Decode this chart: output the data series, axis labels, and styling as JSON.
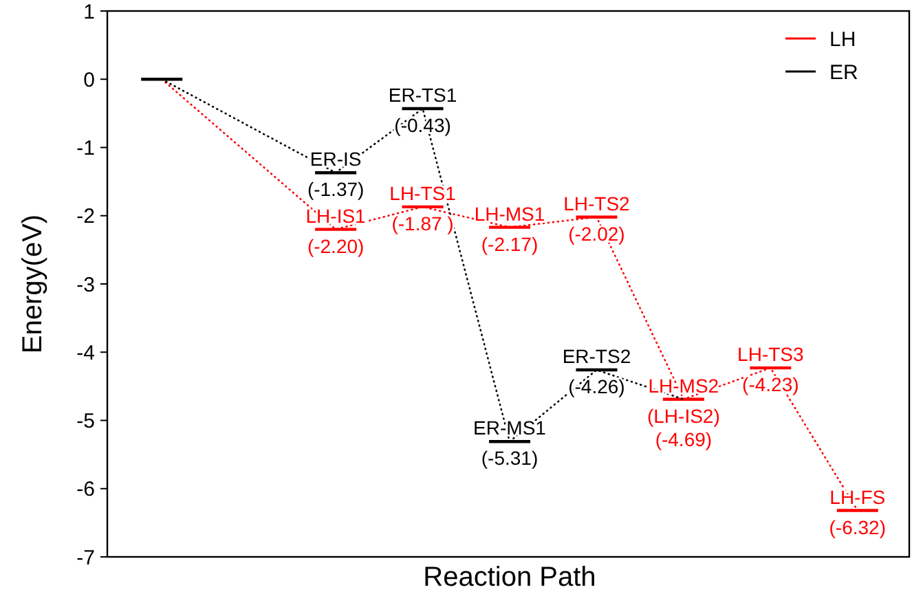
{
  "chart_data": {
    "type": "line",
    "xlabel": "Reaction Path",
    "ylabel": "Energy(eV)",
    "categories": [
      null,
      null,
      null,
      null,
      null,
      null,
      null,
      null,
      null
    ],
    "ylim": [
      -7,
      1
    ],
    "yticks": [
      -7,
      -6,
      -5,
      -4,
      -3,
      -2,
      -1,
      0,
      1
    ],
    "tick_labels": "y",
    "legend": "top right",
    "line_style": "dotted",
    "series": [
      {
        "name": "LH",
        "color": "#ff0000",
        "values": [
          0,
          null,
          -2.2,
          -1.87,
          -2.17,
          -2.02,
          -4.69,
          -4.23,
          -6.32
        ],
        "value_labels": [
          null,
          null,
          "(-2.20)",
          "(-1.87 )",
          "(-2.17)",
          "(-2.02)",
          "(-4.69)",
          "(-4.23)",
          "(-6.32)"
        ]
      },
      {
        "name": "ER",
        "color": "#000000",
        "values": [
          0,
          null,
          -1.37,
          -0.43,
          -5.31,
          -4.26,
          -4.69,
          null,
          null
        ],
        "value_labels": [
          null,
          null,
          "(-1.37)",
          "(-0.43)",
          "(-5.31)",
          "(-4.26)",
          null,
          null,
          null
        ]
      }
    ],
    "annotations": [
      {
        "text": "ER-IS",
        "y": -1.37
      },
      {
        "text": "ER-TS1",
        "y": -0.43
      },
      {
        "text": "ER-MS1",
        "y": -5.31
      },
      {
        "text": "ER-TS2",
        "y": -4.26
      },
      {
        "text": "LH-IS1",
        "y": -2.2
      },
      {
        "text": "LH-TS1",
        "y": -1.87
      },
      {
        "text": "LH-MS1",
        "y": -2.17
      },
      {
        "text": "LH-TS2",
        "y": -2.02
      },
      {
        "text": "LH-MS2\n(LH-IS2)",
        "y": -4.69
      },
      {
        "text": "LH-TS3",
        "y": -4.23
      },
      {
        "text": "LH-FS",
        "y": -6.32
      }
    ]
  }
}
